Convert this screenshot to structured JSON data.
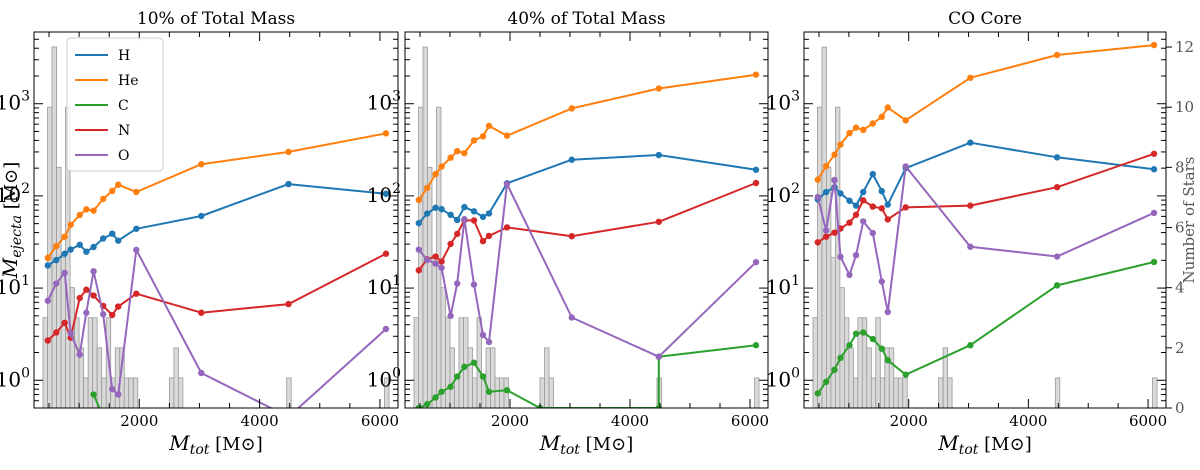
{
  "chart_data": {
    "type": "line",
    "y_scale": "log",
    "ylabel": "M_ejecta [M⊙]",
    "ylabel_parts": {
      "main": "M",
      "sub": "ejecta",
      "unit": " [M⊙]"
    },
    "xlabel": "M_tot [M⊙]",
    "xlabel_parts": {
      "main": "M",
      "sub": "tot",
      "unit": " [M⊙]"
    },
    "secondary_ylabel": "Number of Stars",
    "xlim": [
      250,
      6300
    ],
    "ylim": [
      0.5,
      6000
    ],
    "secondary_ylim": [
      0,
      12.5
    ],
    "x_ticks": [
      2000,
      4000,
      6000
    ],
    "x_tick_labels": [
      "2000",
      "4000",
      "6000"
    ],
    "y_ticks": [
      1,
      10,
      100,
      1000
    ],
    "y_tick_labels": [
      {
        "base": "10",
        "exp": "0"
      },
      {
        "base": "10",
        "exp": "1"
      },
      {
        "base": "10",
        "exp": "2"
      },
      {
        "base": "10",
        "exp": "3"
      }
    ],
    "secondary_ticks": [
      0,
      2,
      4,
      6,
      8,
      10,
      12
    ],
    "secondary_tick_labels": [
      "0",
      "2",
      "4",
      "6",
      "8",
      "10",
      "12"
    ],
    "legend": [
      "H",
      "He",
      "C",
      "N",
      "O"
    ],
    "legend_position": "top-left of first panel",
    "colors": {
      "H": "#1f77b4",
      "He": "#ff7f0e",
      "C": "#2ca02c",
      "N": "#d62728",
      "O": "#9467bd",
      "hist_fill": "#d9d9d9",
      "hist_edge": "#999999"
    },
    "histogram": {
      "bin_width": 75,
      "bin_starts": [
        400,
        475,
        550,
        625,
        700,
        775,
        850,
        925,
        1000,
        1075,
        1150,
        1225,
        1300,
        1375,
        1450,
        1525,
        1600,
        1675,
        1750,
        1825,
        1900,
        2500,
        2575,
        2650,
        4450,
        6075
      ],
      "counts": [
        3,
        10,
        12,
        8,
        5,
        10,
        4,
        3,
        2,
        1,
        3,
        3,
        2,
        1,
        3,
        1,
        2,
        2,
        1,
        1,
        1,
        1,
        2,
        1,
        1,
        1
      ]
    },
    "panels": [
      {
        "title": "10% of Total Mass",
        "series": [
          {
            "name": "H",
            "x": [
              480,
              620,
              760,
              860,
              1010,
              1120,
              1240,
              1400,
              1550,
              1650,
              1950,
              3030,
              4480,
              6100
            ],
            "y": [
              17.6,
              20.1,
              23.6,
              26.2,
              29.5,
              24.8,
              27.9,
              34.5,
              38.9,
              32.7,
              44.0,
              60.5,
              134.4,
              105.4
            ]
          },
          {
            "name": "He",
            "x": [
              480,
              620,
              760,
              860,
              1010,
              1120,
              1240,
              1400,
              1550,
              1650,
              1950,
              3030,
              4480,
              6100
            ],
            "y": [
              21.3,
              28.5,
              36.1,
              48.6,
              62.0,
              71.4,
              69.2,
              92.8,
              113.2,
              132.2,
              110.3,
              220.7,
              300.4,
              477.0
            ]
          },
          {
            "name": "C",
            "x": [
              1240,
              1400
            ],
            "y": [
              0.7,
              0.4
            ]
          },
          {
            "name": "N",
            "x": [
              480,
              620,
              760,
              860,
              1010,
              1120,
              1240,
              1400,
              1550,
              1650,
              1950,
              3030,
              4480,
              6100
            ],
            "y": [
              2.7,
              3.3,
              4.2,
              2.9,
              7.8,
              9.6,
              8.3,
              6.4,
              5.1,
              6.3,
              8.7,
              5.4,
              6.7,
              23.6
            ]
          },
          {
            "name": "O",
            "x": [
              480,
              620,
              760,
              860,
              1010,
              1120,
              1240,
              1400,
              1550,
              1650,
              1950,
              3030,
              4480,
              6100
            ],
            "y": [
              7.3,
              11.2,
              14.6,
              3.2,
              1.9,
              5.4,
              15.2,
              5.2,
              0.8,
              0.7,
              26.0,
              1.2,
              0.4,
              3.6
            ]
          }
        ]
      },
      {
        "title": "40% of Total Mass",
        "series": [
          {
            "name": "H",
            "x": [
              480,
              620,
              760,
              860,
              1010,
              1120,
              1240,
              1400,
              1550,
              1650,
              1950,
              3030,
              4480,
              6100
            ],
            "y": [
              50.6,
              64.4,
              74.3,
              71.8,
              62.4,
              54.8,
              75.6,
              68.1,
              59.2,
              64.6,
              137.1,
              247.0,
              277.6,
              192.1
            ]
          },
          {
            "name": "He",
            "x": [
              480,
              620,
              760,
              860,
              1010,
              1120,
              1240,
              1400,
              1550,
              1650,
              1950,
              3030,
              4480,
              6100
            ],
            "y": [
              90.3,
              122.1,
              172.5,
              208.2,
              259.7,
              305.5,
              291.0,
              399.5,
              442.7,
              574.8,
              450.3,
              890.1,
              1463.0,
              2067.0
            ]
          },
          {
            "name": "C",
            "x": [
              480,
              620,
              760,
              860,
              1010,
              1120,
              1240,
              1400,
              1550,
              1650,
              1950,
              2500,
              4480,
              4480,
              6100
            ],
            "y": [
              0.5,
              0.55,
              0.65,
              0.75,
              0.85,
              1.1,
              1.4,
              1.55,
              1.1,
              0.75,
              0.78,
              0.5,
              0.5,
              1.8,
              2.4
            ]
          },
          {
            "name": "N",
            "x": [
              480,
              620,
              760,
              860,
              1010,
              1120,
              1240,
              1400,
              1550,
              1650,
              1950,
              3030,
              4480,
              6100
            ],
            "y": [
              15.6,
              20.5,
              22.0,
              19.4,
              30.1,
              38.7,
              54.5,
              54.1,
              32.3,
              36.8,
              45.5,
              36.5,
              52.4,
              138.0
            ]
          },
          {
            "name": "O",
            "x": [
              480,
              620,
              760,
              860,
              1010,
              1120,
              1240,
              1400,
              1550,
              1650,
              1950,
              3030,
              4480,
              6100
            ],
            "y": [
              26.1,
              20.2,
              18.4,
              16.6,
              5.0,
              11.2,
              55.8,
              10.9,
              3.1,
              2.6,
              134.5,
              4.8,
              1.8,
              19.1
            ]
          }
        ]
      },
      {
        "title": "CO Core",
        "series": [
          {
            "name": "H",
            "x": [
              480,
              620,
              760,
              860,
              1010,
              1120,
              1240,
              1400,
              1550,
              1650,
              1950,
              3030,
              4480,
              6100
            ],
            "y": [
              91.4,
              110.2,
              124.1,
              106.4,
              88.6,
              78.5,
              110.3,
              172.3,
              112.7,
              80.5,
              200.0,
              378.0,
              262.0,
              194.8
            ]
          },
          {
            "name": "He",
            "x": [
              480,
              620,
              760,
              860,
              1010,
              1120,
              1240,
              1400,
              1550,
              1650,
              1950,
              3030,
              4480,
              6100
            ],
            "y": [
              150.2,
              210.1,
              280.7,
              360.3,
              480.0,
              550.2,
              520.4,
              610.2,
              720.5,
              910.3,
              660.8,
              1912.0,
              3381.0,
              4330.0
            ]
          },
          {
            "name": "C",
            "x": [
              480,
              620,
              760,
              860,
              1010,
              1120,
              1240,
              1400,
              1550,
              1650,
              1950,
              3030,
              4480,
              6100
            ],
            "y": [
              0.72,
              0.96,
              1.3,
              1.75,
              2.4,
              3.2,
              3.3,
              2.8,
              2.2,
              1.65,
              1.15,
              2.4,
              10.7,
              19.2
            ]
          },
          {
            "name": "N",
            "x": [
              480,
              620,
              760,
              860,
              1010,
              1120,
              1240,
              1400,
              1550,
              1650,
              1950,
              3030,
              4480,
              6100
            ],
            "y": [
              31.4,
              36.1,
              39.9,
              44.3,
              51.2,
              62.4,
              89.5,
              76.6,
              73.3,
              55.6,
              75.1,
              78.4,
              124.3,
              286.4
            ]
          },
          {
            "name": "O",
            "x": [
              480,
              620,
              760,
              860,
              1010,
              1120,
              1240,
              1400,
              1550,
              1650,
              1950,
              3030,
              4480,
              6100
            ],
            "y": [
              97.2,
              42.1,
              148.5,
              21.8,
              13.9,
              22.8,
              52.9,
              39.5,
              11.8,
              5.5,
              209.0,
              28.1,
              22.0,
              65.4
            ]
          }
        ]
      }
    ]
  }
}
